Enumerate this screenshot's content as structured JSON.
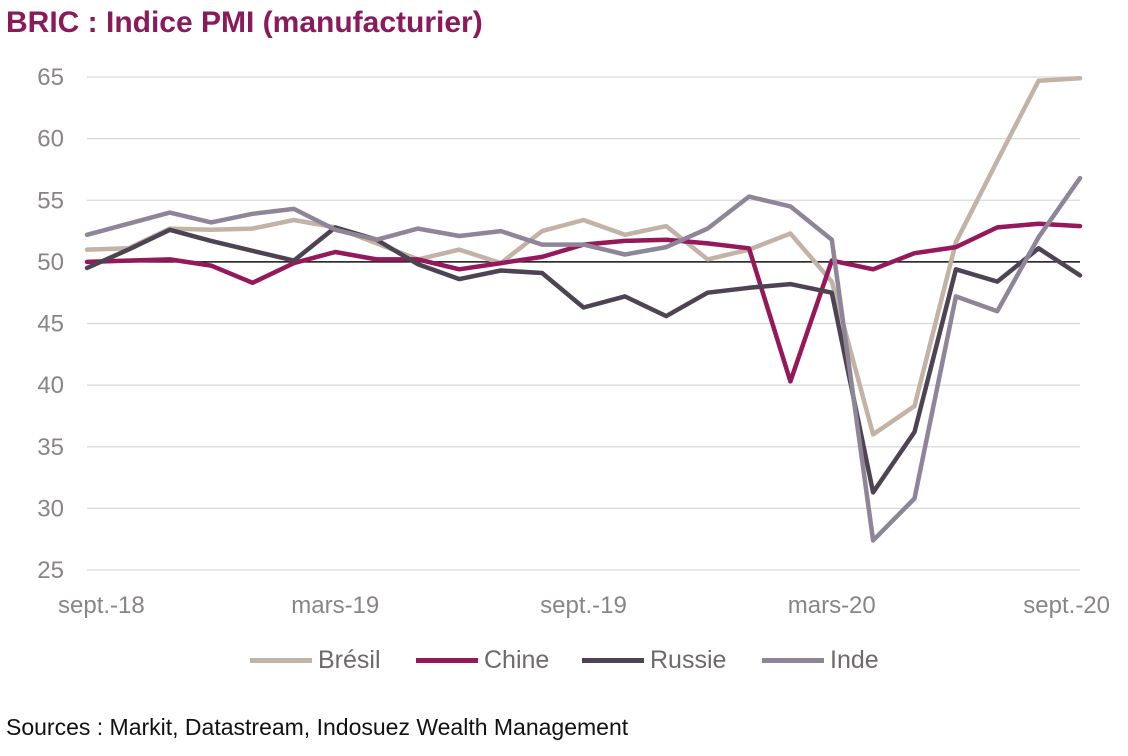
{
  "title": "BRIC : Indice PMI (manufacturier)",
  "source": "Sources : Markit, Datastream, Indosuez Wealth Management",
  "chart_data": {
    "type": "line",
    "title": "BRIC : Indice PMI (manufacturier)",
    "xlabel": "",
    "ylabel": "",
    "x": [
      "sept.-18",
      "oct.-18",
      "nov.-18",
      "déc.-18",
      "janv.-19",
      "févr.-19",
      "mars-19",
      "avr.-19",
      "mai-19",
      "juin-19",
      "juil.-19",
      "août-19",
      "sept.-19",
      "oct.-19",
      "nov.-19",
      "déc.-19",
      "janv.-20",
      "févr.-20",
      "mars-20",
      "avr.-20",
      "mai-20",
      "juin-20",
      "juil.-20",
      "août-20",
      "sept.-20"
    ],
    "x_tick_labels": [
      "sept.-18",
      "mars-19",
      "sept.-19",
      "mars-20",
      "sept.-20"
    ],
    "x_tick_indices": [
      0,
      6,
      12,
      18,
      24
    ],
    "ylim": [
      25,
      65
    ],
    "yticks": [
      25,
      30,
      35,
      40,
      45,
      50,
      55,
      60,
      65
    ],
    "reference_line": 50,
    "grid": "horizontal",
    "legend_position": "bottom",
    "series": [
      {
        "name": "Brésil",
        "color": "#c2b3a6",
        "values": [
          51.0,
          51.1,
          52.7,
          52.6,
          52.7,
          53.4,
          52.8,
          51.5,
          50.2,
          51.0,
          49.9,
          52.5,
          53.4,
          52.2,
          52.9,
          50.2,
          51.0,
          52.3,
          48.4,
          36.0,
          38.3,
          51.6,
          58.2,
          64.7,
          64.9
        ]
      },
      {
        "name": "Chine",
        "color": "#95185a",
        "values": [
          50.0,
          50.1,
          50.2,
          49.7,
          48.3,
          49.9,
          50.8,
          50.2,
          50.2,
          49.4,
          49.9,
          50.4,
          51.4,
          51.7,
          51.8,
          51.5,
          51.1,
          40.3,
          50.1,
          49.4,
          50.7,
          51.2,
          52.8,
          53.1,
          52.9
        ]
      },
      {
        "name": "Russie",
        "color": "#4d4352",
        "values": [
          49.5,
          51.0,
          52.6,
          51.7,
          50.9,
          50.1,
          52.8,
          51.8,
          49.8,
          48.6,
          49.3,
          49.1,
          46.3,
          47.2,
          45.6,
          47.5,
          47.9,
          48.2,
          47.5,
          31.3,
          36.2,
          49.4,
          48.4,
          51.1,
          48.9
        ]
      },
      {
        "name": "Inde",
        "color": "#8f8598",
        "values": [
          52.2,
          53.1,
          54.0,
          53.2,
          53.9,
          54.3,
          52.6,
          51.8,
          52.7,
          52.1,
          52.5,
          51.4,
          51.4,
          50.6,
          51.2,
          52.7,
          55.3,
          54.5,
          51.8,
          27.4,
          30.8,
          47.2,
          46.0,
          52.0,
          56.8
        ]
      }
    ]
  }
}
